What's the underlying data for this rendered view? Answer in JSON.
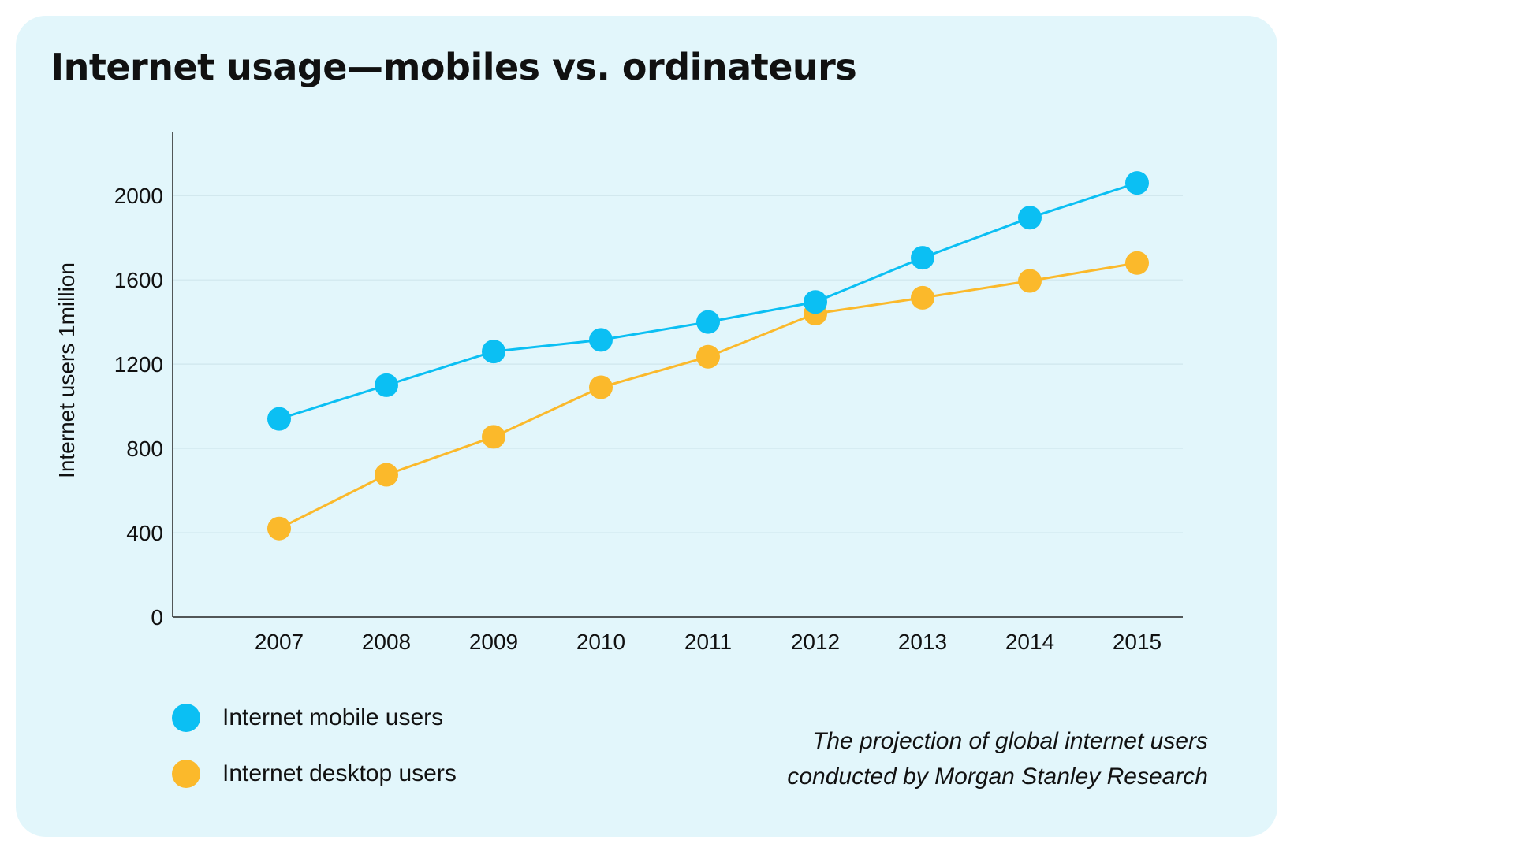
{
  "chart_data": {
    "type": "line",
    "title": "Internet usage—mobiles vs. ordinateurs",
    "xlabel": "",
    "ylabel": "Internet users 1million",
    "categories": [
      "2007",
      "2008",
      "2009",
      "2010",
      "2011",
      "2012",
      "2013",
      "2014",
      "2015"
    ],
    "yticks": [
      "0",
      "400",
      "800",
      "1200",
      "1600",
      "2000"
    ],
    "ylim": [
      0,
      2300
    ],
    "grid": true,
    "legend_position": "bottom-left",
    "series": [
      {
        "name": "Internet mobile users",
        "color": "#0bbff3",
        "values": [
          940,
          1100,
          1260,
          1315,
          1400,
          1495,
          1705,
          1895,
          2060
        ]
      },
      {
        "name": "Internet desktop users",
        "color": "#fbb92b",
        "values": [
          420,
          675,
          855,
          1090,
          1235,
          1440,
          1515,
          1595,
          1680
        ]
      }
    ],
    "annotation": [
      "The projection of global internet users",
      "conducted by Morgan Stanley Research"
    ]
  },
  "colors": {
    "card_background": "#e2f6fb",
    "axis": "#222222",
    "grid": "#cfe6ec"
  }
}
